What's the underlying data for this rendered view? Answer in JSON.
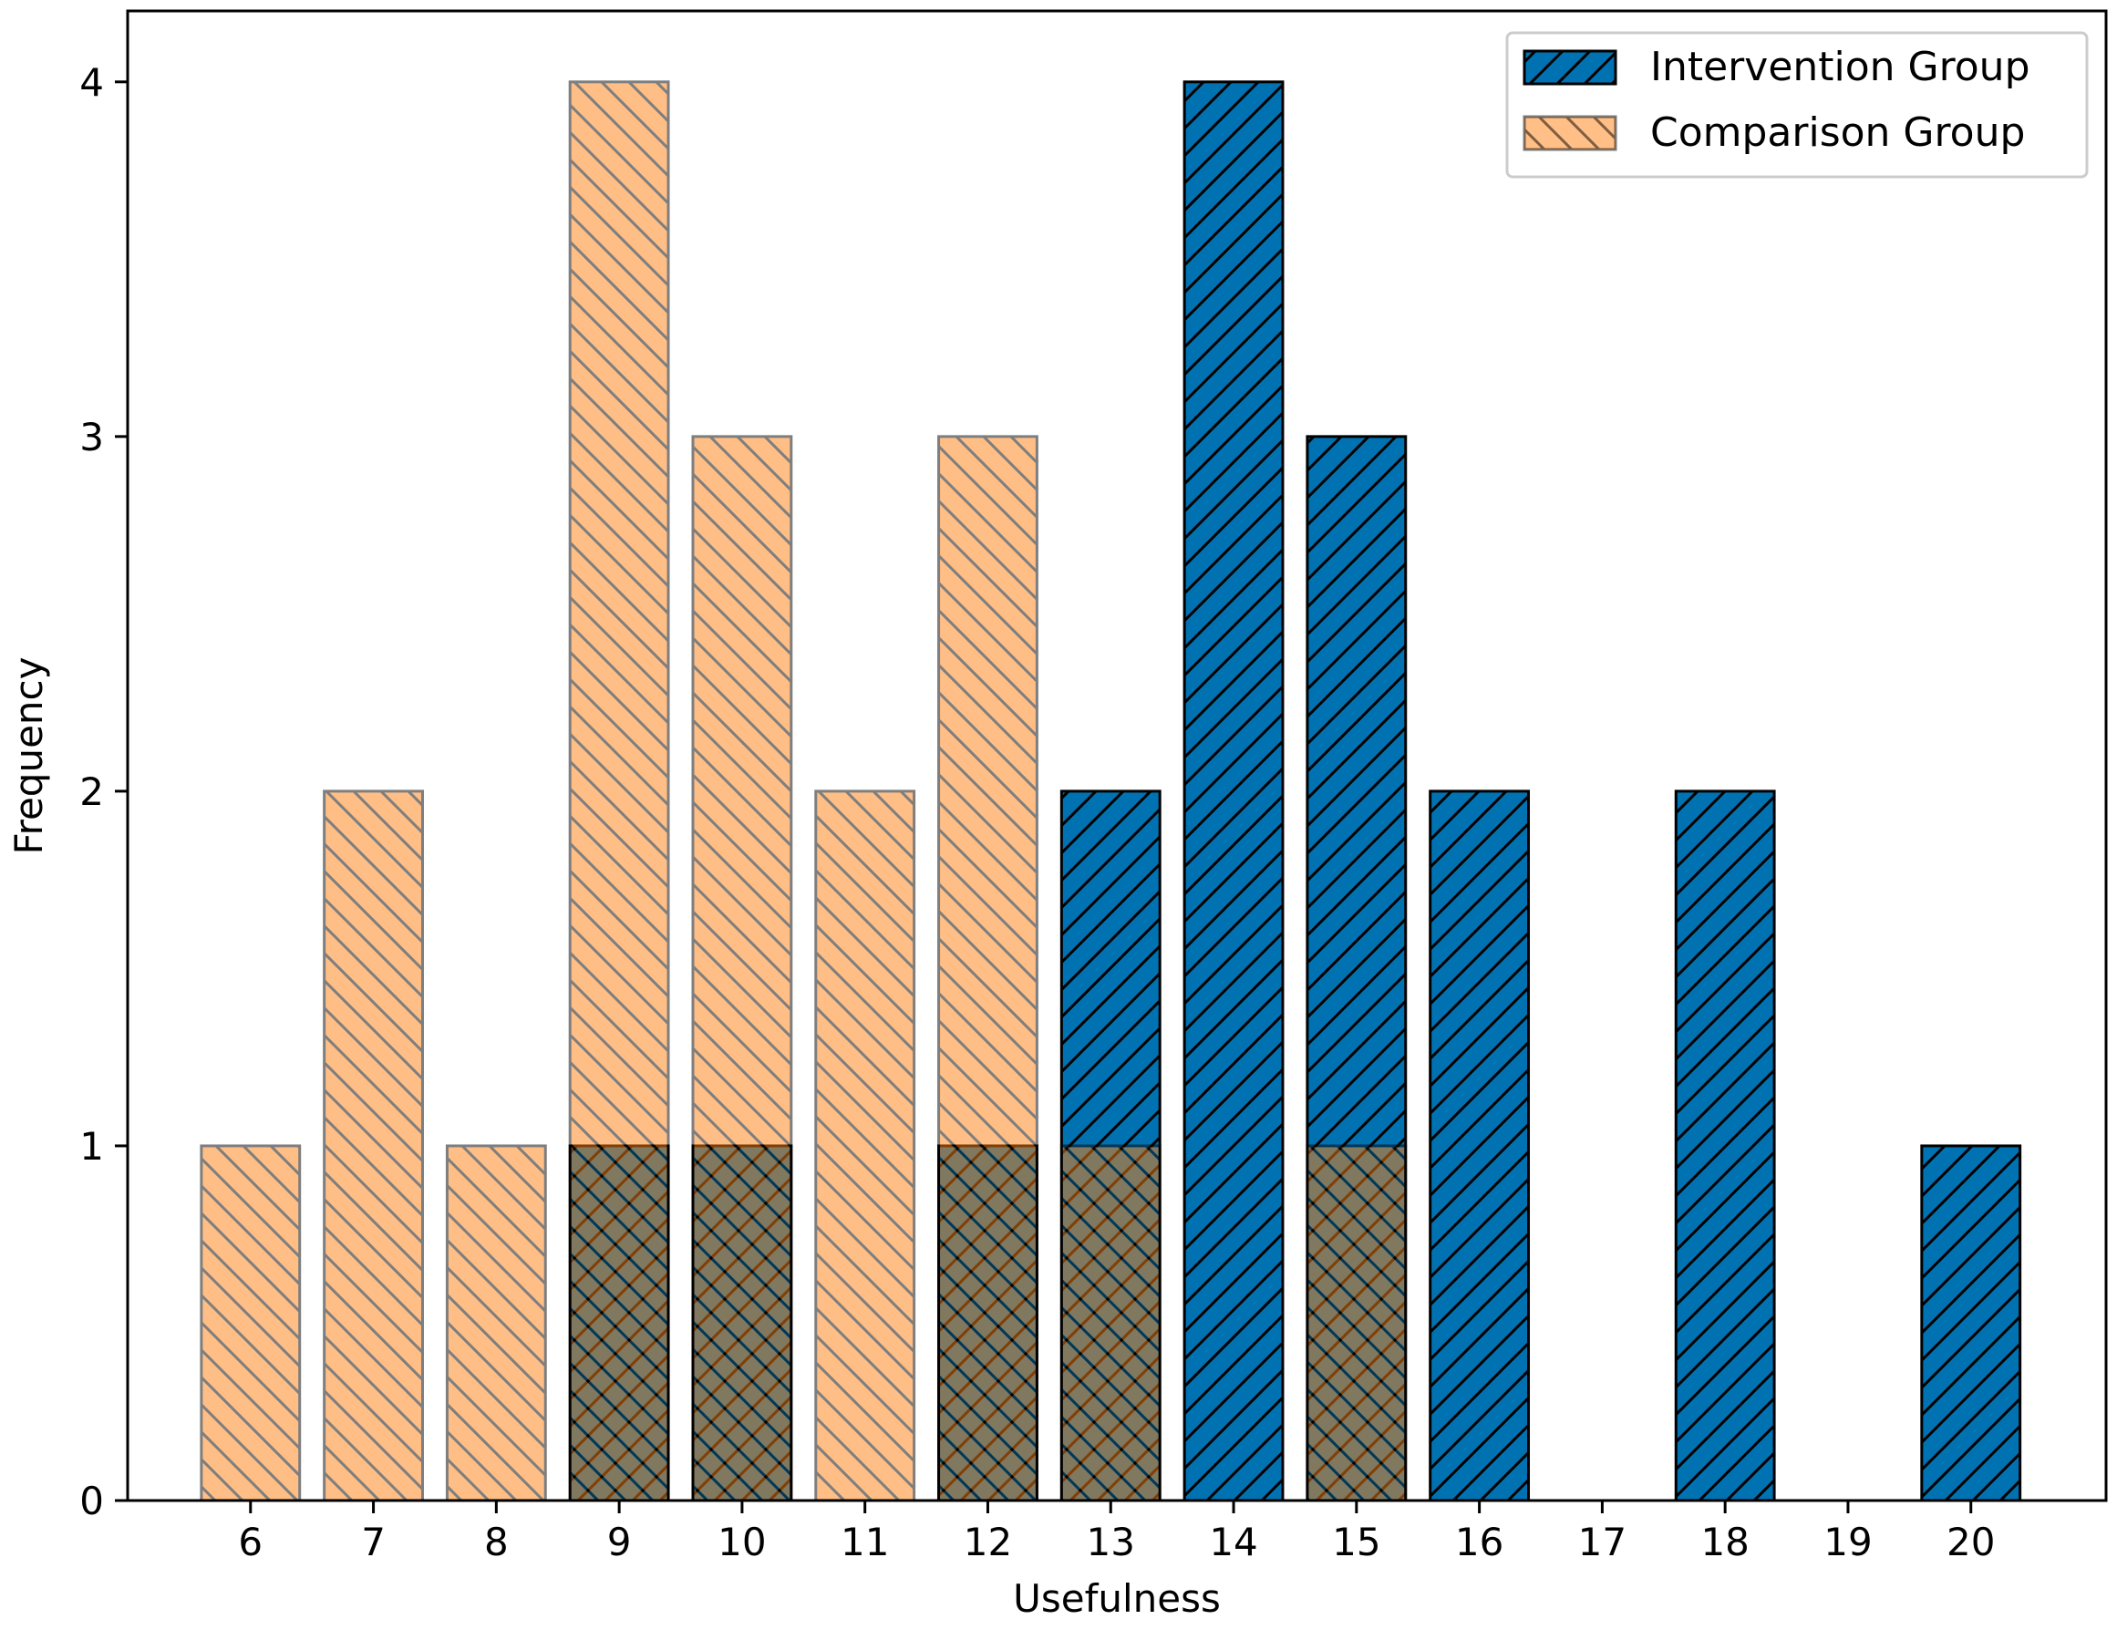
{
  "chart_data": {
    "type": "bar",
    "title": "",
    "xlabel": "Usefulness",
    "ylabel": "Frequency",
    "categories": [
      "6",
      "7",
      "8",
      "9",
      "10",
      "11",
      "12",
      "13",
      "14",
      "15",
      "16",
      "17",
      "18",
      "19",
      "20"
    ],
    "x": [
      6,
      7,
      8,
      9,
      10,
      11,
      12,
      13,
      14,
      15,
      16,
      17,
      18,
      19,
      20
    ],
    "xlim": [
      5.0,
      21.1
    ],
    "ylim": [
      0,
      4.2
    ],
    "yticks": [
      "0",
      "1",
      "2",
      "3",
      "4"
    ],
    "grid": false,
    "legend_position": "top-right",
    "series": [
      {
        "name": "Intervention Group",
        "color": "#0072b2",
        "hatch": "forward-diagonal",
        "alpha": 1.0,
        "values": [
          0,
          0,
          0,
          1,
          1,
          0,
          1,
          2,
          4,
          3,
          2,
          0,
          2,
          0,
          1
        ]
      },
      {
        "name": "Comparison Group",
        "color": "#ff7f0e",
        "hatch": "back-diagonal",
        "alpha": 0.5,
        "values": [
          1,
          2,
          1,
          4,
          3,
          2,
          3,
          1,
          0,
          1,
          0,
          0,
          0,
          0,
          0
        ]
      }
    ]
  }
}
